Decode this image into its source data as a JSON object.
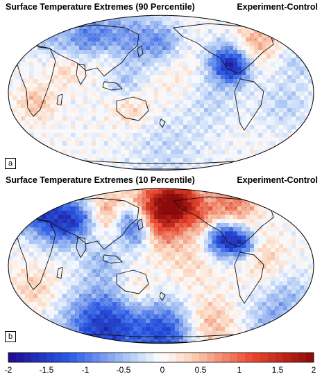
{
  "panels": [
    {
      "title": "Surface Temperature Extremes (90 Percentile)",
      "subtitle": "Experiment-Control",
      "label": "a"
    },
    {
      "title": "Surface Temperature Extremes (10 Percentile)",
      "subtitle": "Experiment-Control",
      "label": "b"
    }
  ],
  "colorbar": {
    "min": -2,
    "max": 2,
    "tick_labels": [
      "-2",
      "-1.5",
      "-1",
      "-0.5",
      "0",
      "0.5",
      "1",
      "1.5",
      "2"
    ],
    "colors": {
      "strong_negative": "#1e0a8c",
      "negative": "#2a5ae6",
      "weak_negative": "#b4cdf5",
      "zero": "#ffffff",
      "weak_positive": "#fad2b9",
      "positive": "#eb462d",
      "strong_positive": "#8c0a0a"
    }
  }
}
